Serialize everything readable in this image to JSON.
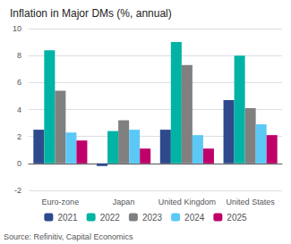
{
  "chart_data": {
    "type": "bar",
    "title": "Inflation in Major DMs (%, annual)",
    "annotations": [
      "Source: Refinitiv, Capital Economics"
    ],
    "categories": [
      "Euro-zone",
      "Japan",
      "United Kingdom",
      "United States"
    ],
    "series": [
      {
        "name": "2021",
        "color": "#2e4a8c",
        "values": [
          2.5,
          -0.2,
          2.5,
          4.7
        ]
      },
      {
        "name": "2022",
        "color": "#00b3a4",
        "values": [
          8.4,
          2.4,
          9.0,
          8.0
        ]
      },
      {
        "name": "2023",
        "color": "#808080",
        "values": [
          5.4,
          3.2,
          7.3,
          4.1
        ]
      },
      {
        "name": "2024",
        "color": "#5bc8f5",
        "values": [
          2.3,
          2.5,
          2.1,
          2.9
        ]
      },
      {
        "name": "2025",
        "color": "#c0006a",
        "values": [
          1.7,
          1.1,
          1.1,
          2.1
        ]
      }
    ],
    "ylim": [
      -2,
      10
    ],
    "yticks": [
      -2,
      0,
      2,
      4,
      6,
      8,
      10
    ],
    "grid": true,
    "legend": "bottom"
  }
}
